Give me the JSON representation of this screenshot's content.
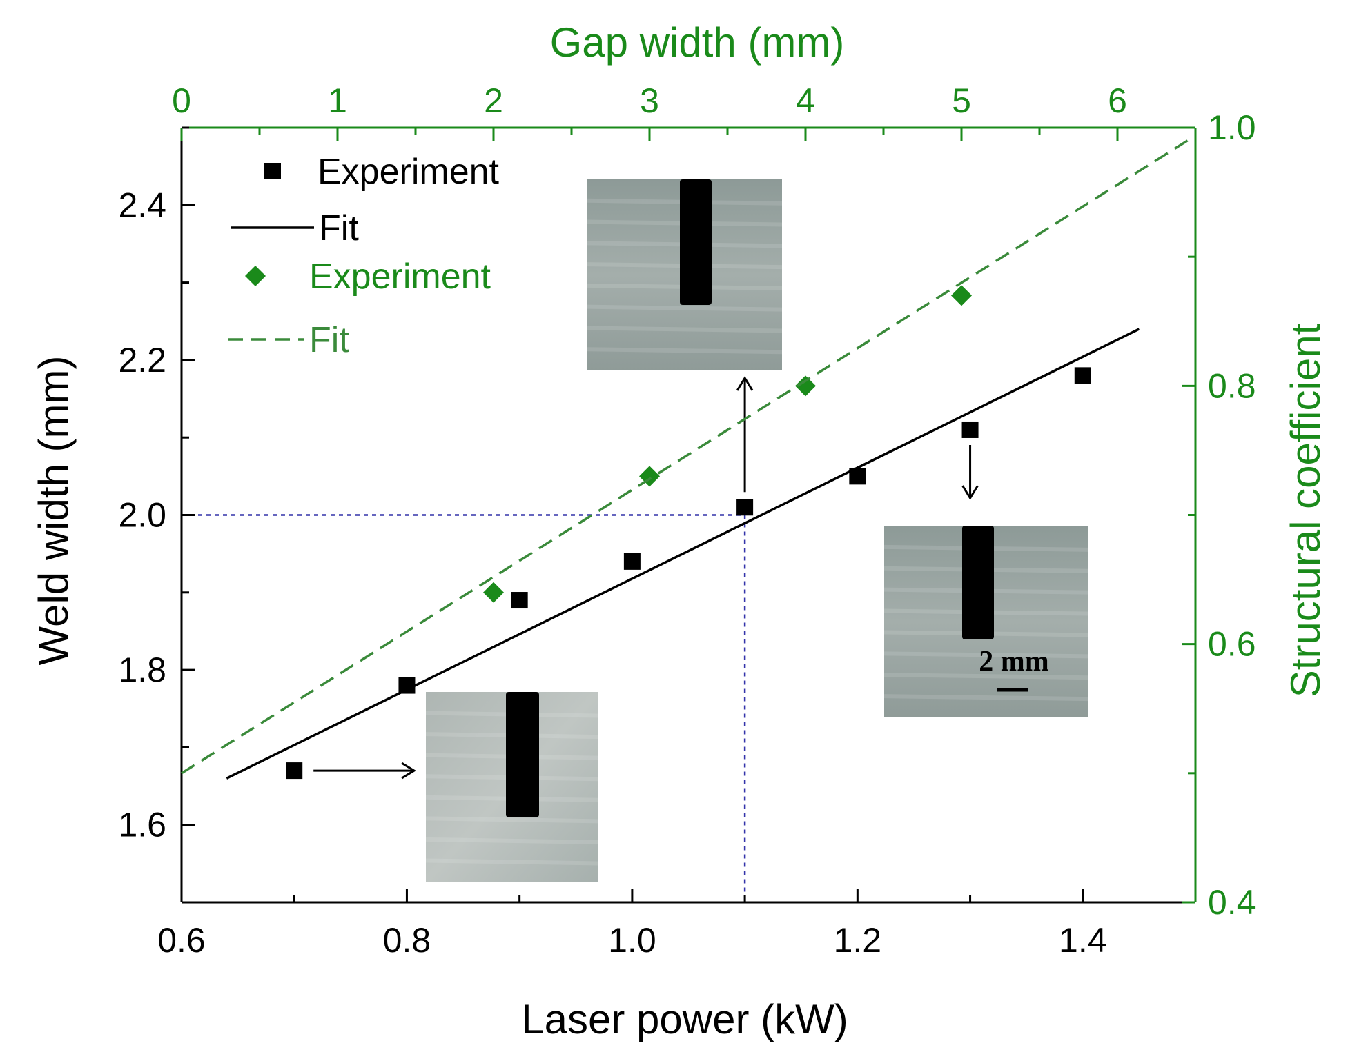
{
  "chart_data": {
    "type": "scatter",
    "bottom_axis": {
      "label": "Laser power (kW)",
      "range": [
        0.6,
        1.5
      ],
      "ticks": [
        0.6,
        0.8,
        1.0,
        1.2,
        1.4
      ],
      "tick_labels": [
        "0.6",
        "0.8",
        "1.0",
        "1.2",
        "1.4"
      ]
    },
    "left_axis": {
      "label": "Weld width (mm)",
      "range": [
        1.5,
        2.5
      ],
      "ticks": [
        1.6,
        1.8,
        2.0,
        2.2,
        2.4
      ],
      "tick_labels": [
        "1.6",
        "1.8",
        "2.0",
        "2.2",
        "2.4"
      ]
    },
    "top_axis": {
      "label": "Gap width (mm)",
      "range": [
        0,
        6.5
      ],
      "ticks": [
        0,
        1,
        2,
        3,
        4,
        5,
        6
      ],
      "tick_labels": [
        "0",
        "1",
        "2",
        "3",
        "4",
        "5",
        "6"
      ]
    },
    "right_axis": {
      "label": "Structural coefficient",
      "range": [
        0.4,
        1.0
      ],
      "ticks": [
        0.4,
        0.6,
        0.8,
        1.0
      ],
      "tick_labels": [
        "0.4",
        "0.6",
        "0.8",
        "1.0"
      ]
    },
    "series": [
      {
        "name": "Experiment",
        "kind": "scatter",
        "marker": "square",
        "color": "#000000",
        "axes": "bottom-left",
        "x": [
          0.7,
          0.8,
          0.9,
          1.0,
          1.1,
          1.2,
          1.3,
          1.4
        ],
        "y": [
          1.67,
          1.78,
          1.89,
          1.94,
          2.01,
          2.05,
          2.11,
          2.18
        ]
      },
      {
        "name": "Fit",
        "kind": "line",
        "style": "solid",
        "color": "#000000",
        "axes": "bottom-left",
        "x": [
          0.64,
          1.45
        ],
        "y": [
          1.66,
          2.24
        ]
      },
      {
        "name": "Experiment",
        "kind": "scatter",
        "marker": "diamond",
        "color": "#1a8a1a",
        "axes": "top-right",
        "x": [
          2,
          3,
          4,
          5
        ],
        "y": [
          0.64,
          0.73,
          0.8,
          0.87
        ]
      },
      {
        "name": "Fit",
        "kind": "line",
        "style": "dashed",
        "color": "#3a8a3a",
        "axes": "top-right",
        "x": [
          0,
          6.45
        ],
        "y": [
          0.5,
          0.99
        ]
      }
    ],
    "reference_lines": {
      "x": 1.1,
      "y": 2.0,
      "style": "dotted",
      "color": "#3333aa"
    },
    "legend": {
      "position": "top-left",
      "entries": [
        {
          "label": "Experiment",
          "symbol": "square",
          "color": "#000000"
        },
        {
          "label": "Fit",
          "symbol": "solid-line",
          "color": "#000000"
        },
        {
          "label": "Experiment",
          "symbol": "diamond",
          "color": "#1a8a1a"
        },
        {
          "label": "Fit",
          "symbol": "dashed-line",
          "color": "#3a8a3a"
        }
      ]
    },
    "insets": [
      {
        "name": "weld-photo-low-power",
        "points_from_x": 0.7,
        "scale_text": ""
      },
      {
        "name": "weld-photo-mid-power",
        "points_from_x": 1.1,
        "scale_text": ""
      },
      {
        "name": "weld-photo-high-power",
        "points_from_x": 1.3,
        "scale_text": "2 mm"
      }
    ],
    "colors": {
      "primary": "#000000",
      "secondary": "#1a8a1a",
      "reference": "#3333aa"
    }
  }
}
